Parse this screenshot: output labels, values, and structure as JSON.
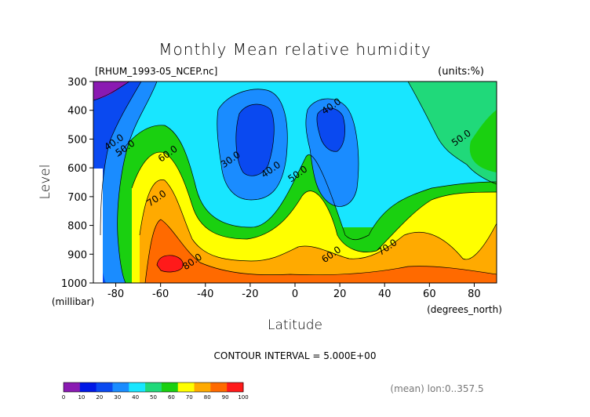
{
  "chart_data": {
    "type": "contour",
    "title": "Monthly Mean relative humidity",
    "file_label": "[RHUM_1993-05_NCEP.nc]",
    "units_label": "(units:%)",
    "ylabel": "Level",
    "yunit": "(millibar)",
    "xlabel": "Latitude",
    "xunit": "(degrees_north)",
    "contour_interval_text": "CONTOUR INTERVAL = 5.000E+00",
    "footer_note": "(mean) lon:0..357.5",
    "xlim": [
      -90,
      90
    ],
    "ylim": [
      1000,
      300
    ],
    "x_ticks": [
      -80,
      -60,
      -40,
      -20,
      0,
      20,
      40,
      60,
      80
    ],
    "y_ticks": [
      300,
      400,
      500,
      600,
      700,
      800,
      900,
      1000
    ],
    "color_levels": [
      0,
      10,
      20,
      30,
      40,
      50,
      60,
      70,
      80,
      90,
      100
    ],
    "colors": [
      "#8a1ab2",
      "#0018e6",
      "#0a49f0",
      "#1a8cff",
      "#18e6ff",
      "#20d97a",
      "#1ad010",
      "#ffff00",
      "#ffaa00",
      "#ff6a00",
      "#ff1a1a"
    ],
    "contour_labels": [
      {
        "text": "40.0",
        "lat": 17,
        "level": 395
      },
      {
        "text": "40.0",
        "lat": -80,
        "level": 520
      },
      {
        "text": "50.0",
        "lat": -75,
        "level": 540
      },
      {
        "text": "60.0",
        "lat": -56,
        "level": 560
      },
      {
        "text": "30.0",
        "lat": -28,
        "level": 580
      },
      {
        "text": "40.0",
        "lat": -10,
        "level": 615
      },
      {
        "text": "50.0",
        "lat": 2,
        "level": 630
      },
      {
        "text": "50.0",
        "lat": 75,
        "level": 505
      },
      {
        "text": "70.0",
        "lat": -61,
        "level": 715
      },
      {
        "text": "80.0",
        "lat": -45,
        "level": 935
      },
      {
        "text": "60.0",
        "lat": 17,
        "level": 910
      },
      {
        "text": "70.0",
        "lat": 42,
        "level": 885
      }
    ]
  }
}
